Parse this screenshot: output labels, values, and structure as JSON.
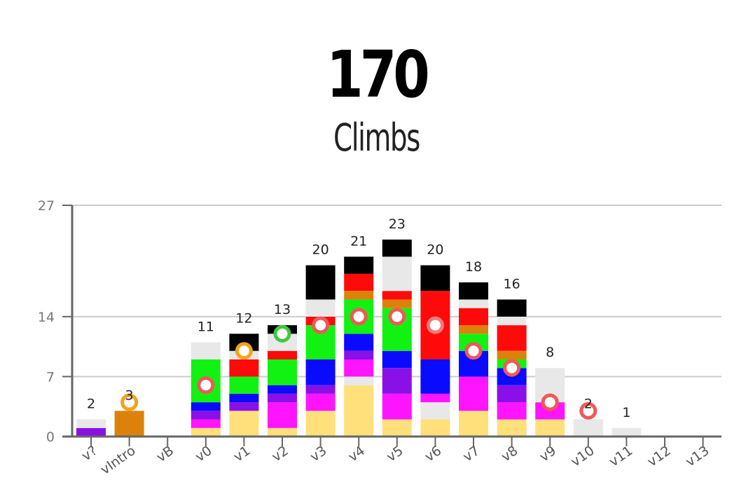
{
  "header": {
    "total": "170",
    "unit": "Climbs"
  },
  "chart_data": {
    "type": "bar",
    "stacked": true,
    "ylim": [
      0,
      27
    ],
    "yticks": [
      "0",
      "7",
      "14",
      "27"
    ],
    "grid": true,
    "categories": [
      "v?",
      "vIntro",
      "vB",
      "v0",
      "v1",
      "v2",
      "v3",
      "v4",
      "v5",
      "v6",
      "v7",
      "v8",
      "v9",
      "v10",
      "v11",
      "v12",
      "v13"
    ],
    "totals_labels": [
      "2",
      "3",
      "",
      "11",
      "12",
      "13",
      "20",
      "21",
      "23",
      "20",
      "18",
      "16",
      "8",
      "2",
      "1",
      "",
      ""
    ],
    "stacks": [
      [
        {
          "c": "#8a10e8",
          "v": 1
        },
        {
          "c": "#e8e8e8",
          "v": 1
        }
      ],
      [
        {
          "c": "#dc820a",
          "v": 3
        }
      ],
      [],
      [
        {
          "c": "#ffe07a",
          "v": 1
        },
        {
          "c": "#ff14ff",
          "v": 1
        },
        {
          "c": "#8a10e8",
          "v": 1
        },
        {
          "c": "#0a0aff",
          "v": 1
        },
        {
          "c": "#12f212",
          "v": 5
        },
        {
          "c": "#e8e8e8",
          "v": 2
        }
      ],
      [
        {
          "c": "#ffe07a",
          "v": 3
        },
        {
          "c": "#8a10e8",
          "v": 1
        },
        {
          "c": "#0a0aff",
          "v": 1
        },
        {
          "c": "#12f212",
          "v": 2
        },
        {
          "c": "#ff0a0a",
          "v": 2
        },
        {
          "c": "#e8e8e8",
          "v": 1
        },
        {
          "c": "#000000",
          "v": 2
        }
      ],
      [
        {
          "c": "#ffe07a",
          "v": 1
        },
        {
          "c": "#ff14ff",
          "v": 3
        },
        {
          "c": "#8a10e8",
          "v": 1
        },
        {
          "c": "#0a0aff",
          "v": 1
        },
        {
          "c": "#12f212",
          "v": 3
        },
        {
          "c": "#ff0a0a",
          "v": 1
        },
        {
          "c": "#e8e8e8",
          "v": 2
        },
        {
          "c": "#000000",
          "v": 1
        }
      ],
      [
        {
          "c": "#ffe07a",
          "v": 3
        },
        {
          "c": "#ff14ff",
          "v": 2
        },
        {
          "c": "#8a10e8",
          "v": 1
        },
        {
          "c": "#0a0aff",
          "v": 3
        },
        {
          "c": "#12f212",
          "v": 4
        },
        {
          "c": "#ff0a0a",
          "v": 1
        },
        {
          "c": "#e8e8e8",
          "v": 2
        },
        {
          "c": "#000000",
          "v": 4
        }
      ],
      [
        {
          "c": "#ffe07a",
          "v": 6
        },
        {
          "c": "#e8e8e8",
          "v": 1
        },
        {
          "c": "#ff14ff",
          "v": 2
        },
        {
          "c": "#8a10e8",
          "v": 1
        },
        {
          "c": "#0a0aff",
          "v": 2
        },
        {
          "c": "#12f212",
          "v": 4
        },
        {
          "c": "#dc820a",
          "v": 1
        },
        {
          "c": "#ff0a0a",
          "v": 2
        },
        {
          "c": "#000000",
          "v": 2
        }
      ],
      [
        {
          "c": "#ffe07a",
          "v": 2
        },
        {
          "c": "#ff14ff",
          "v": 3
        },
        {
          "c": "#8a10e8",
          "v": 3
        },
        {
          "c": "#0a0aff",
          "v": 2
        },
        {
          "c": "#12f212",
          "v": 5
        },
        {
          "c": "#dc820a",
          "v": 1
        },
        {
          "c": "#ff0a0a",
          "v": 1
        },
        {
          "c": "#e8e8e8",
          "v": 4
        },
        {
          "c": "#000000",
          "v": 2
        }
      ],
      [
        {
          "c": "#ffe07a",
          "v": 2
        },
        {
          "c": "#e8e8e8",
          "v": 2
        },
        {
          "c": "#ff14ff",
          "v": 1
        },
        {
          "c": "#0a0aff",
          "v": 4
        },
        {
          "c": "#ff0a0a",
          "v": 8
        },
        {
          "c": "#000000",
          "v": 3
        }
      ],
      [
        {
          "c": "#ffe07a",
          "v": 3
        },
        {
          "c": "#ff14ff",
          "v": 4
        },
        {
          "c": "#0a0aff",
          "v": 3
        },
        {
          "c": "#12f212",
          "v": 2
        },
        {
          "c": "#dc820a",
          "v": 1
        },
        {
          "c": "#ff0a0a",
          "v": 2
        },
        {
          "c": "#e8e8e8",
          "v": 1
        },
        {
          "c": "#000000",
          "v": 2
        }
      ],
      [
        {
          "c": "#ffe07a",
          "v": 2
        },
        {
          "c": "#ff14ff",
          "v": 2
        },
        {
          "c": "#8a10e8",
          "v": 2
        },
        {
          "c": "#0a0aff",
          "v": 2
        },
        {
          "c": "#12f212",
          "v": 1
        },
        {
          "c": "#dc820a",
          "v": 1
        },
        {
          "c": "#ff0a0a",
          "v": 3
        },
        {
          "c": "#e8e8e8",
          "v": 1
        },
        {
          "c": "#000000",
          "v": 2
        }
      ],
      [
        {
          "c": "#ffe07a",
          "v": 2
        },
        {
          "c": "#ff14ff",
          "v": 2
        },
        {
          "c": "#e8e8e8",
          "v": 4
        }
      ],
      [
        {
          "c": "#e8e8e8",
          "v": 2
        }
      ],
      [
        {
          "c": "#e8e8e8",
          "v": 1
        }
      ],
      [],
      []
    ],
    "markers": [
      {
        "cat": "vIntro",
        "value": 4.0,
        "color": "#f2a31a"
      },
      {
        "cat": "v0",
        "value": 6.0,
        "color": "#f05858"
      },
      {
        "cat": "v1",
        "value": 10.0,
        "color": "#f2a31a"
      },
      {
        "cat": "v2",
        "value": 12.0,
        "color": "#3ec83e"
      },
      {
        "cat": "v3",
        "value": 13.0,
        "color": "#f05858"
      },
      {
        "cat": "v4",
        "value": 14.0,
        "color": "#f05858"
      },
      {
        "cat": "v5",
        "value": 14.0,
        "color": "#f05858"
      },
      {
        "cat": "v6",
        "value": 13.0,
        "color": "#f07a7a"
      },
      {
        "cat": "v7",
        "value": 10.0,
        "color": "#f05858"
      },
      {
        "cat": "v8",
        "value": 8.0,
        "color": "#f05858"
      },
      {
        "cat": "v9",
        "value": 4.0,
        "color": "#f05858"
      },
      {
        "cat": "v10",
        "value": 3.0,
        "color": "#f05858"
      }
    ]
  }
}
